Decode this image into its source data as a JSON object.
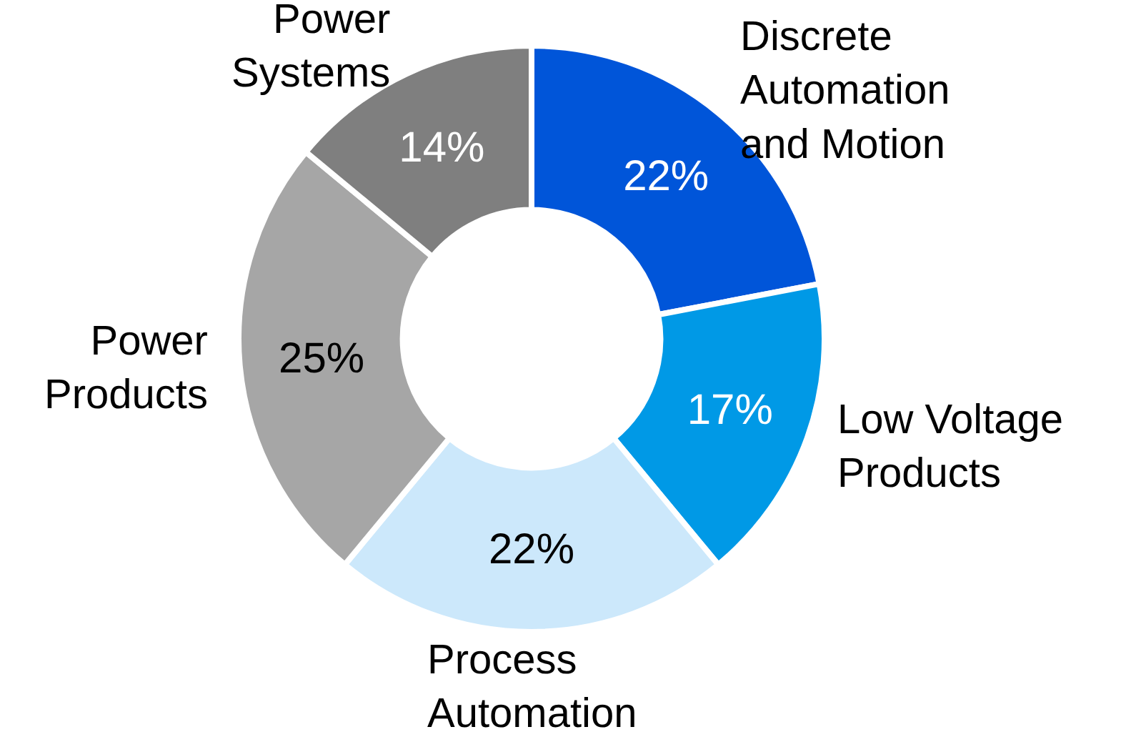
{
  "chart_data": {
    "type": "donut",
    "categories": [
      "Discrete\nAutomation\nand Motion",
      "Low Voltage\nProducts",
      "Process\nAutomation",
      "Power\nProducts",
      "Power\nSystems"
    ],
    "values": [
      22,
      17,
      22,
      25,
      14
    ],
    "value_labels": [
      "22%",
      "17%",
      "22%",
      "25%",
      "14%"
    ],
    "colors": [
      "#0055d9",
      "#0099e6",
      "#cce8fb",
      "#a6a6a6",
      "#7f7f7f"
    ]
  }
}
